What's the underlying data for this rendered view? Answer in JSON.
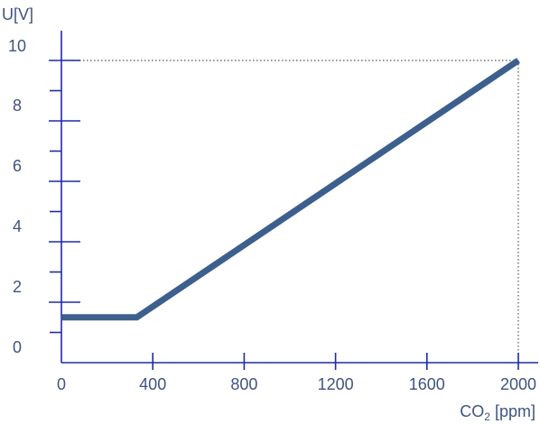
{
  "chart_data": {
    "type": "line",
    "ylabel": "U[V]",
    "xlabel_main": "CO",
    "xlabel_sub": "2",
    "xlabel_suffix": " [ppm]",
    "x_ticks": [
      "0",
      "400",
      "800",
      "1200",
      "1600",
      "2000"
    ],
    "y_ticks": [
      "0",
      "2",
      "4",
      "6",
      "8",
      "10"
    ],
    "xlim": [
      0,
      2000
    ],
    "ylim": [
      0,
      10
    ],
    "series": [
      {
        "points": [
          {
            "x": 0,
            "y": 1.5
          },
          {
            "x": 330,
            "y": 1.5
          },
          {
            "x": 2000,
            "y": 10
          }
        ]
      }
    ],
    "reference_lines": [
      {
        "style": "dotted",
        "points": [
          {
            "x": 0,
            "y": 10
          },
          {
            "x": 2000,
            "y": 10
          }
        ]
      },
      {
        "style": "dotted",
        "points": [
          {
            "x": 2000,
            "y": 10
          },
          {
            "x": 2000,
            "y": 0
          }
        ]
      }
    ],
    "colors": {
      "axis": "#1f2aa8",
      "line": "#3c5f8e",
      "text": "#3f5480",
      "ref": "#555555"
    }
  }
}
